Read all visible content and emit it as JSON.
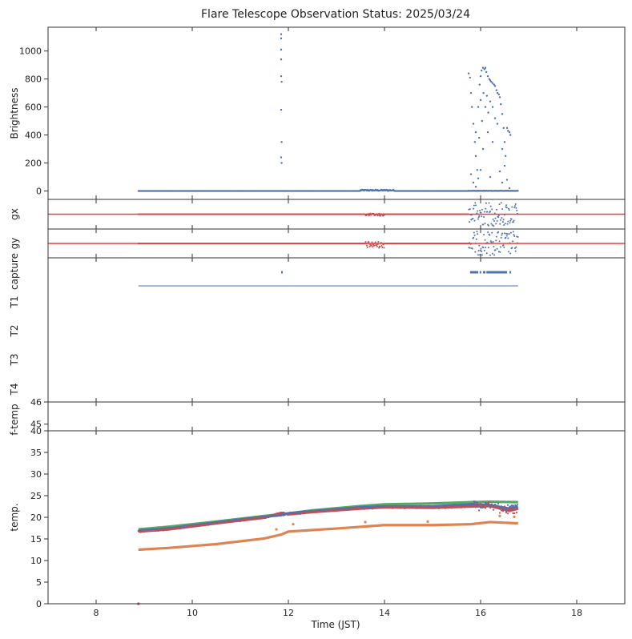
{
  "chart_data": {
    "type": "scatter",
    "title": "Flare Telescope Observation Status: 2025/03/24",
    "xlabel": "Time (JST)",
    "xlim": [
      7,
      19
    ],
    "xticks": [
      8,
      10,
      12,
      14,
      16,
      18
    ],
    "colors": {
      "blue": "#4c72b0",
      "orange": "#dd8452",
      "green": "#55a868",
      "red": "#c44e52",
      "line_red": "#e8413b"
    },
    "panels": [
      {
        "id": "brightness",
        "ylabel": "Brightness",
        "ylim": [
          -60,
          1170
        ],
        "yticks": [
          0,
          200,
          400,
          600,
          800,
          1000
        ],
        "series": [
          {
            "name": "baseline",
            "x_range": [
              8.88,
              16.78
            ],
            "y": 0
          },
          {
            "name": "flare-spike",
            "x": [
              11.85,
              11.85,
              11.85,
              11.85,
              11.85,
              11.86,
              11.85,
              11.86,
              11.85,
              11.86
            ],
            "y": [
              1120,
              1090,
              1010,
              940,
              820,
              780,
              580,
              350,
              240,
              200
            ]
          },
          {
            "name": "afternoon-events",
            "points": [
              [
                15.75,
                840
              ],
              [
                15.78,
                810
              ],
              [
                15.8,
                700
              ],
              [
                15.82,
                600
              ],
              [
                15.85,
                480
              ],
              [
                15.88,
                350
              ],
              [
                15.9,
                250
              ],
              [
                15.93,
                150
              ],
              [
                15.95,
                90
              ],
              [
                15.98,
                760
              ],
              [
                16.0,
                820
              ],
              [
                16.02,
                860
              ],
              [
                16.05,
                880
              ],
              [
                16.08,
                870
              ],
              [
                16.1,
                880
              ],
              [
                16.12,
                850
              ],
              [
                16.15,
                820
              ],
              [
                16.18,
                800
              ],
              [
                16.2,
                790
              ],
              [
                16.22,
                780
              ],
              [
                16.25,
                770
              ],
              [
                16.28,
                760
              ],
              [
                16.3,
                750
              ],
              [
                16.33,
                720
              ],
              [
                16.35,
                700
              ],
              [
                16.38,
                690
              ],
              [
                16.4,
                670
              ],
              [
                16.42,
                620
              ],
              [
                16.45,
                550
              ],
              [
                16.48,
                450
              ],
              [
                16.5,
                350
              ],
              [
                16.52,
                250
              ],
              [
                16.55,
                450
              ],
              [
                16.57,
                430
              ],
              [
                16.6,
                420
              ],
              [
                16.62,
                400
              ],
              [
                15.95,
                600
              ],
              [
                16.0,
                650
              ],
              [
                16.03,
                500
              ],
              [
                16.06,
                700
              ],
              [
                16.1,
                600
              ],
              [
                16.13,
                680
              ],
              [
                16.16,
                560
              ],
              [
                16.2,
                640
              ],
              [
                16.25,
                600
              ],
              [
                16.3,
                520
              ],
              [
                15.9,
                420
              ],
              [
                15.97,
                380
              ],
              [
                16.05,
                300
              ],
              [
                16.15,
                420
              ],
              [
                16.25,
                350
              ],
              [
                16.35,
                480
              ],
              [
                16.45,
                300
              ],
              [
                16.5,
                180
              ],
              [
                16.55,
                80
              ],
              [
                16.6,
                20
              ],
              [
                15.8,
                120
              ],
              [
                15.85,
                60
              ],
              [
                15.9,
                30
              ],
              [
                16.0,
                150
              ],
              [
                16.2,
                100
              ],
              [
                16.4,
                140
              ],
              [
                16.45,
                60
              ]
            ]
          }
        ]
      },
      {
        "id": "gx",
        "ylabel": "gx",
        "ylim": [
          -1,
          1
        ],
        "reference_line": 0
      },
      {
        "id": "gy",
        "ylabel": "gy",
        "ylim": [
          -1,
          1
        ],
        "reference_line": 0
      },
      {
        "id": "status",
        "ylabels": [
          "capture",
          "T1",
          "T2",
          "T3",
          "T4"
        ],
        "capture_marks": [
          [
            11.85,
            11.88
          ],
          [
            15.78,
            15.95
          ],
          [
            15.98,
            16.0
          ],
          [
            16.05,
            16.1
          ],
          [
            16.12,
            16.55
          ],
          [
            16.6,
            16.62
          ]
        ],
        "status_line": [
          8.88,
          16.78
        ]
      },
      {
        "id": "f-temp",
        "ylabel": "f-temp",
        "ylim": [
          44.7,
          46
        ],
        "yticks": [
          45,
          46
        ]
      },
      {
        "id": "temp",
        "ylabel": "temp.",
        "ylim": [
          0,
          40
        ],
        "yticks": [
          0,
          5,
          10,
          15,
          20,
          25,
          30,
          35,
          40
        ],
        "series": [
          {
            "name": "green",
            "x": [
              8.88,
              9.5,
              10.5,
              11.5,
              12,
              12.5,
              13.5,
              14,
              15,
              15.8,
              16.2,
              16.78
            ],
            "y": [
              17.2,
              17.8,
              19.0,
              20.3,
              20.9,
              21.6,
              22.6,
              23.0,
              23.2,
              23.5,
              23.6,
              23.5
            ]
          },
          {
            "name": "blue",
            "x": [
              8.88,
              9.5,
              10.5,
              11.5,
              11.85,
              12,
              12.5,
              13.5,
              14,
              15,
              15.8,
              16.2,
              16.6,
              16.78
            ],
            "y": [
              16.9,
              17.4,
              18.8,
              20.1,
              20.5,
              20.9,
              21.4,
              22.3,
              22.5,
              22.5,
              23.0,
              22.8,
              22.0,
              22.3
            ]
          },
          {
            "name": "red",
            "x": [
              8.88,
              9.5,
              10.5,
              11.5,
              11.85,
              12,
              12.5,
              13.5,
              14,
              15,
              15.8,
              16.2,
              16.6,
              16.78
            ],
            "y": [
              16.7,
              17.2,
              18.6,
              19.9,
              21.0,
              20.7,
              21.2,
              22.0,
              22.3,
              22.2,
              22.5,
              22.6,
              21.5,
              22.0
            ]
          },
          {
            "name": "orange",
            "x": [
              8.88,
              9.5,
              10.5,
              11.5,
              11.85,
              12,
              13,
              14,
              15,
              15.8,
              16.2,
              16.78
            ],
            "y": [
              12.5,
              12.9,
              13.8,
              15.1,
              16.0,
              16.7,
              17.4,
              18.2,
              18.2,
              18.4,
              18.9,
              18.6
            ]
          }
        ],
        "extra_points": [
          [
            12.1,
            18.4
          ],
          [
            11.75,
            17.2
          ],
          [
            13.6,
            18.9
          ],
          [
            14.9,
            19.0
          ],
          [
            16.4,
            20.3
          ],
          [
            16.7,
            20.1
          ],
          [
            8.88,
            0
          ]
        ]
      }
    ]
  }
}
